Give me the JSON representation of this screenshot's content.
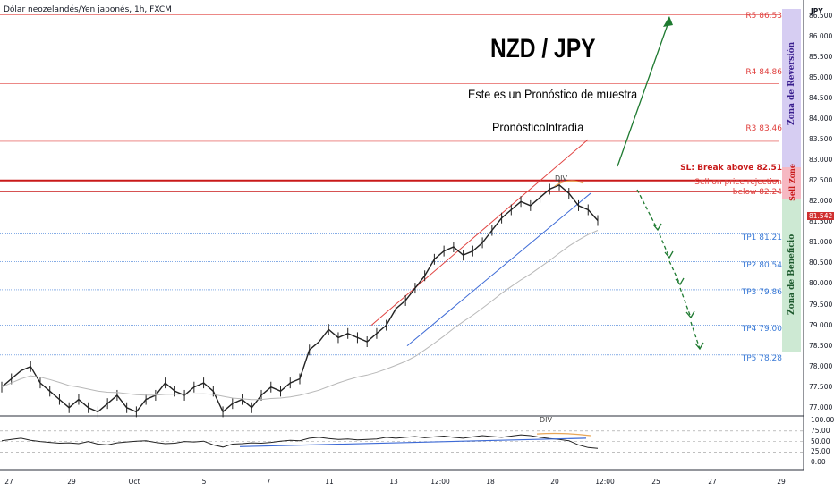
{
  "symbol": "Dólar neozelandés/Yen japonés, 1h, FXCM",
  "title": "NZD / JPY",
  "subtitle1": "Este es un Pronóstico de muestra",
  "subtitle2": "PronósticoIntradía",
  "currency": "JPY",
  "colors": {
    "resistance": "#e0413f",
    "support": "#3b7ad6",
    "sl": "#c81919",
    "arrow": "#1e7a30",
    "trend_up": "#e0413f",
    "trend_low": "#3d6ad6",
    "ma": "#b8b8b8"
  },
  "levels": {
    "r5": {
      "label": "R5 86.53",
      "value": 86.53
    },
    "r4": {
      "label": "R4 84.86",
      "value": 84.86
    },
    "r3": {
      "label": "R3 83.46",
      "value": 83.46
    },
    "sl": {
      "label": "SL: Break above 82.51",
      "value": 82.51
    },
    "sell1": {
      "label": "Sell on price rejection"
    },
    "sell2": {
      "label": "below 82.24",
      "value": 82.24
    },
    "tp1": {
      "label": "TP1 81.21",
      "value": 81.21
    },
    "tp2": {
      "label": "TP2 80.54",
      "value": 80.54
    },
    "tp3": {
      "label": "TP3 79.86",
      "value": 79.86
    },
    "tp4": {
      "label": "TP4 79.00",
      "value": 79.0
    },
    "tp5": {
      "label": "TP5 78.28",
      "value": 78.28
    }
  },
  "zones": {
    "reversal": "Zona de Reversión",
    "sell": "Sell Zone",
    "profit": "Zona de Beneficio"
  },
  "divergence_label": "DIV",
  "last_price": "81.542",
  "y_axis_ticks": [
    "86.500",
    "86.000",
    "85.500",
    "85.000",
    "84.500",
    "84.000",
    "83.500",
    "83.000",
    "82.500",
    "82.000",
    "81.500",
    "81.000",
    "80.500",
    "80.000",
    "79.500",
    "79.000",
    "78.500",
    "78.000",
    "77.500",
    "77.000"
  ],
  "rsi_ticks": [
    "100.00",
    "75.00",
    "50.00",
    "25.00",
    "0.00"
  ],
  "x_axis_ticks": [
    "27",
    "29",
    "Oct",
    "5",
    "7",
    "11",
    "13",
    "12:00",
    "18",
    "20",
    "12:00",
    "25",
    "27",
    "29"
  ],
  "chart_data": {
    "type": "line",
    "ylim": [
      76.8,
      86.8
    ],
    "series": [
      {
        "values": [
          77.5,
          77.7,
          77.9,
          78.0,
          77.6,
          77.4,
          77.2,
          77.0,
          77.2,
          77.0,
          76.9,
          77.1,
          77.3,
          77.0,
          76.9,
          77.2,
          77.3,
          77.6,
          77.4,
          77.3,
          77.5,
          77.6,
          77.4,
          76.9,
          77.1,
          77.2,
          77.0,
          77.3,
          77.5,
          77.4,
          77.6,
          77.7,
          78.4,
          78.6,
          78.9,
          78.7,
          78.8,
          78.7,
          78.6,
          78.8,
          79.0,
          79.4,
          79.6,
          79.9,
          80.2,
          80.6,
          80.8,
          80.9,
          80.7,
          80.8,
          81.0,
          81.3,
          81.6,
          81.8,
          82.0,
          81.9,
          82.1,
          82.3,
          82.4,
          82.2,
          81.9,
          81.8,
          81.54
        ]
      }
    ],
    "rsi_ylim": [
      -10,
      100
    ],
    "rsi": [
      52,
      55,
      58,
      53,
      50,
      48,
      46,
      47,
      45,
      50,
      44,
      42,
      47,
      49,
      51,
      52,
      48,
      45,
      46,
      50,
      49,
      51,
      42,
      37,
      44,
      45,
      47,
      46,
      48,
      51,
      53,
      52,
      58,
      60,
      57,
      55,
      56,
      54,
      55,
      56,
      60,
      58,
      60,
      62,
      59,
      61,
      63,
      60,
      58,
      61,
      64,
      62,
      60,
      63,
      66,
      64,
      60,
      57,
      55,
      52,
      42,
      36,
      34
    ]
  }
}
